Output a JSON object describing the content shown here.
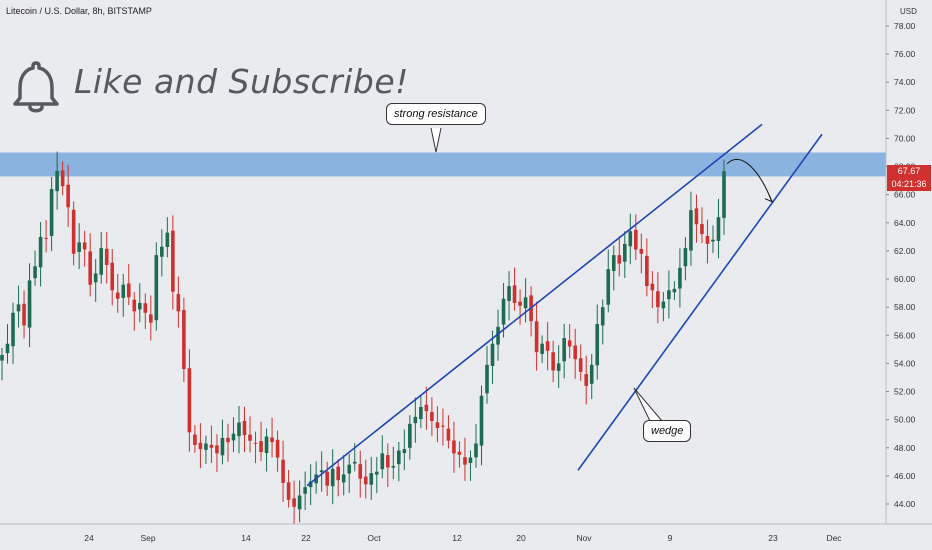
{
  "header": {
    "title": "Litecoin / U.S. Dollar, 8h, BITSTAMP",
    "currency": "USD"
  },
  "promo": {
    "text": "Like and Subscribe!",
    "icon": "bell-icon"
  },
  "annotations": {
    "resistance_label": "strong resistance",
    "pattern_label": "wedge"
  },
  "price_tags": {
    "last_price": "67.67",
    "countdown": "04:21:36"
  },
  "colors": {
    "up": "#26a69a",
    "up_dark": "#1e6b52",
    "down": "#d0302f",
    "trendline": "#1e46b4",
    "zone": "#79a9dc",
    "price_tag": "#d0302f"
  },
  "chart_data": {
    "type": "candlestick",
    "title": "Litecoin / U.S. Dollar, 8h, BITSTAMP",
    "ylim": [
      43.0,
      79.0
    ],
    "y_ticks": [
      "44.00",
      "46.00",
      "48.00",
      "50.00",
      "52.00",
      "54.00",
      "56.00",
      "58.00",
      "60.00",
      "62.00",
      "64.00",
      "66.00",
      "68.00",
      "70.00",
      "72.00",
      "74.00",
      "76.00",
      "78.00"
    ],
    "x_ticks": [
      "24",
      "Sep",
      "14",
      "22",
      "Oct",
      "12",
      "20",
      "Nov",
      "9",
      "23",
      "Dec"
    ],
    "resistance_zone": [
      67.3,
      69.0
    ],
    "close_path": [
      54.6,
      55.4,
      57.6,
      58.2,
      56.7,
      59.9,
      60.9,
      63.0,
      62.9,
      66.4,
      67.7,
      66.6,
      65.1,
      61.8,
      62.6,
      62.1,
      59.6,
      60.4,
      62.2,
      61.0,
      59.2,
      58.6,
      59.6,
      58.7,
      57.7,
      58.3,
      57.6,
      56.9,
      61.7,
      62.3,
      63.3,
      59.1,
      57.7,
      53.6,
      49.1,
      48.2,
      47.9,
      48.3,
      48.0,
      47.6,
      48.7,
      48.4,
      49.0,
      49.8,
      48.9,
      48.5,
      48.3,
      47.7,
      48.8,
      48.4,
      47.3,
      45.5,
      44.3,
      43.8,
      44.6,
      45.2,
      45.6,
      46.1,
      46.4,
      45.3,
      46.5,
      45.7,
      46.1,
      46.8,
      47.0,
      45.8,
      45.4,
      46.2,
      46.3,
      47.6,
      46.6,
      46.7,
      47.8,
      47.9,
      49.7,
      50.2,
      50.9,
      50.6,
      49.9,
      49.4,
      49.5,
      48.5,
      47.6,
      47.5,
      46.8,
      47.3,
      48.3,
      51.7,
      53.9,
      55.4,
      56.6,
      58.6,
      59.5,
      58.3,
      58.1,
      58.7,
      57.0,
      54.8,
      55.4,
      54.9,
      53.5,
      54.0,
      55.8,
      55.2,
      54.3,
      53.4,
      52.4,
      53.9,
      56.8,
      58.0,
      60.7,
      61.7,
      61.1,
      62.5,
      63.4,
      62.1,
      61.8,
      59.5,
      59.2,
      58.0,
      58.4,
      59.2,
      59.3,
      60.8,
      62.2,
      64.9,
      63.9,
      63.2,
      62.5,
      62.8,
      64.4,
      67.67
    ],
    "trendlines": [
      {
        "name": "wedge-upper",
        "points": [
          [
            "Aug 22",
            45.3
          ],
          [
            "Nov 20",
            71.0
          ]
        ]
      },
      {
        "name": "wedge-lower",
        "points": [
          [
            "Nov 1",
            46.4
          ],
          [
            "Nov 27",
            70.3
          ]
        ]
      }
    ],
    "projection_arrow": {
      "from": 68.2,
      "to": 65.5
    },
    "last_price": 67.67,
    "countdown": "04:21:36"
  }
}
